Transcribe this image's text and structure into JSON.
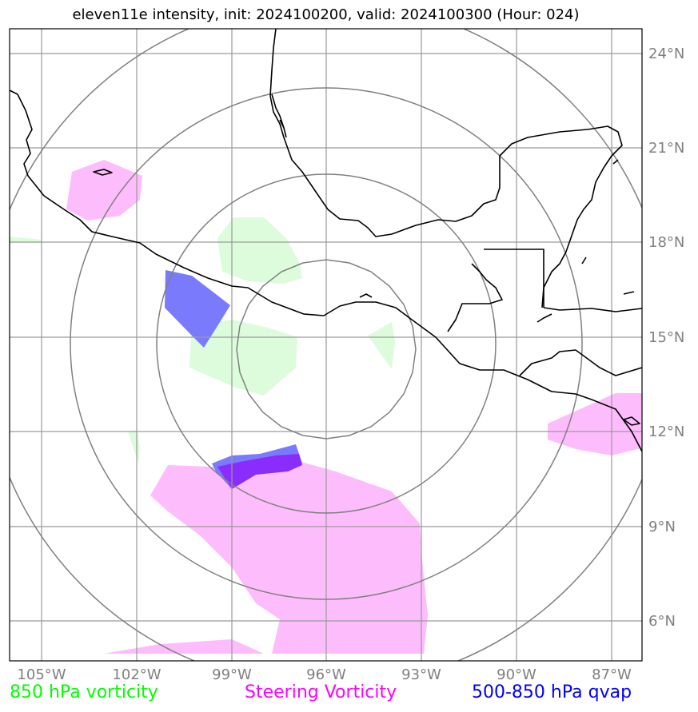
{
  "title": "eleven11e intensity, init: 2024100200, valid: 2024100300 (Hour: 024)",
  "lon_labels": [
    "105°W",
    "102°W",
    "99°W",
    "96°W",
    "93°W",
    "90°W",
    "87°W"
  ],
  "lat_labels": [
    "24°N",
    "21°N",
    "18°N",
    "15°N",
    "12°N",
    "9°N",
    "6°N"
  ],
  "legend": {
    "vort850": "850 hPa vorticity",
    "steering": "Steering Vorticity",
    "qvap": "500-850 hPa qvap"
  },
  "colors": {
    "vort850": "#00ff00",
    "steering": "#ff00ff",
    "qvap": "#0000ff",
    "vort850_fill": "#dcfcdc",
    "steering_fill": "#fdbdfc",
    "qvap_fill": "#6e6efb",
    "grid": "#9a9a9a",
    "rings": "#808080",
    "coast": "#000000"
  }
}
